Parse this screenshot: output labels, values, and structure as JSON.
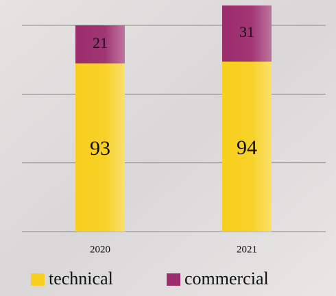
{
  "chart_data": {
    "type": "stacked_bar",
    "categories": [
      "2020",
      "2021"
    ],
    "series": [
      {
        "name": "technical",
        "color": "#f7cf1c",
        "values": [
          93,
          94
        ]
      },
      {
        "name": "commercial",
        "color": "#9c2c6c",
        "values": [
          21,
          31
        ]
      }
    ],
    "ylim": [
      0,
      125
    ],
    "yticks": [
      0,
      38,
      76,
      114
    ],
    "grid": true
  }
}
